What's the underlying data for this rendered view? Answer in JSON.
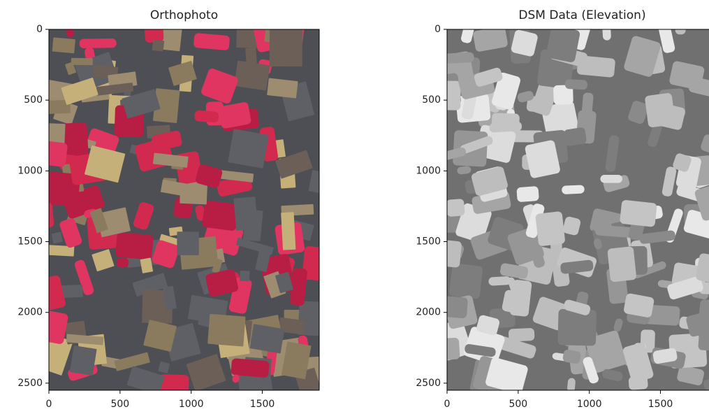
{
  "chart_data": [
    {
      "type": "image",
      "title": "Orthophoto",
      "xlim": [
        0,
        1900
      ],
      "ylim": [
        2550,
        0
      ],
      "xticks": [
        0,
        500,
        1000,
        1500
      ],
      "yticks": [
        0,
        500,
        1000,
        1500,
        2000,
        2500
      ]
    },
    {
      "type": "image",
      "title": "DSM Data (Elevation)",
      "colormap": "gray",
      "xlim": [
        0,
        1900
      ],
      "ylim": [
        2550,
        0
      ],
      "xticks": [
        0,
        500,
        1000,
        1500
      ],
      "yticks": [
        0,
        500,
        1000,
        1500,
        2000,
        2500
      ]
    }
  ]
}
